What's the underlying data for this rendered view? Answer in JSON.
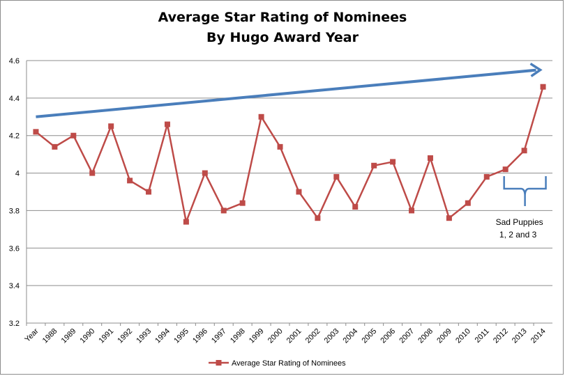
{
  "chart_data": {
    "type": "line",
    "title_line1": "Average Star Rating of Nominees",
    "title_line2": "By Hugo Award Year",
    "categories": [
      "Year",
      "1988",
      "1989",
      "1990",
      "1991",
      "1992",
      "1993",
      "1994",
      "1995",
      "1996",
      "1997",
      "1998",
      "1999",
      "2000",
      "2001",
      "2002",
      "2003",
      "2004",
      "2005",
      "2006",
      "2007",
      "2008",
      "2009",
      "2010",
      "2011",
      "2012",
      "2013",
      "2014"
    ],
    "series": [
      {
        "name": "Average Star Rating of Nominees",
        "color": "#be4b48",
        "values": [
          4.22,
          4.14,
          4.2,
          4.0,
          4.25,
          3.96,
          3.9,
          4.26,
          3.74,
          4.0,
          3.8,
          3.84,
          4.3,
          4.14,
          3.9,
          3.76,
          3.98,
          3.82,
          4.04,
          4.06,
          3.8,
          4.08,
          3.76,
          3.84,
          3.98,
          4.02,
          4.12,
          4.46
        ]
      }
    ],
    "ylim": [
      3.2,
      4.6
    ],
    "yticks": [
      "3.2",
      "3.4",
      "3.6",
      "3.8",
      "4",
      "4.2",
      "4.4",
      "4.6"
    ],
    "grid": true,
    "legend_position": "bottom",
    "annotations": {
      "trend_arrow": {
        "from": {
          "x": "Year",
          "y": 4.3
        },
        "to": {
          "x": "2014",
          "y": 4.55
        },
        "color": "#4a7ebb"
      },
      "brace": {
        "from": "2012",
        "to": "2014",
        "label_line1": "Sad Puppies",
        "label_line2": "1, 2 and 3",
        "color": "#4a7ebb"
      }
    }
  }
}
